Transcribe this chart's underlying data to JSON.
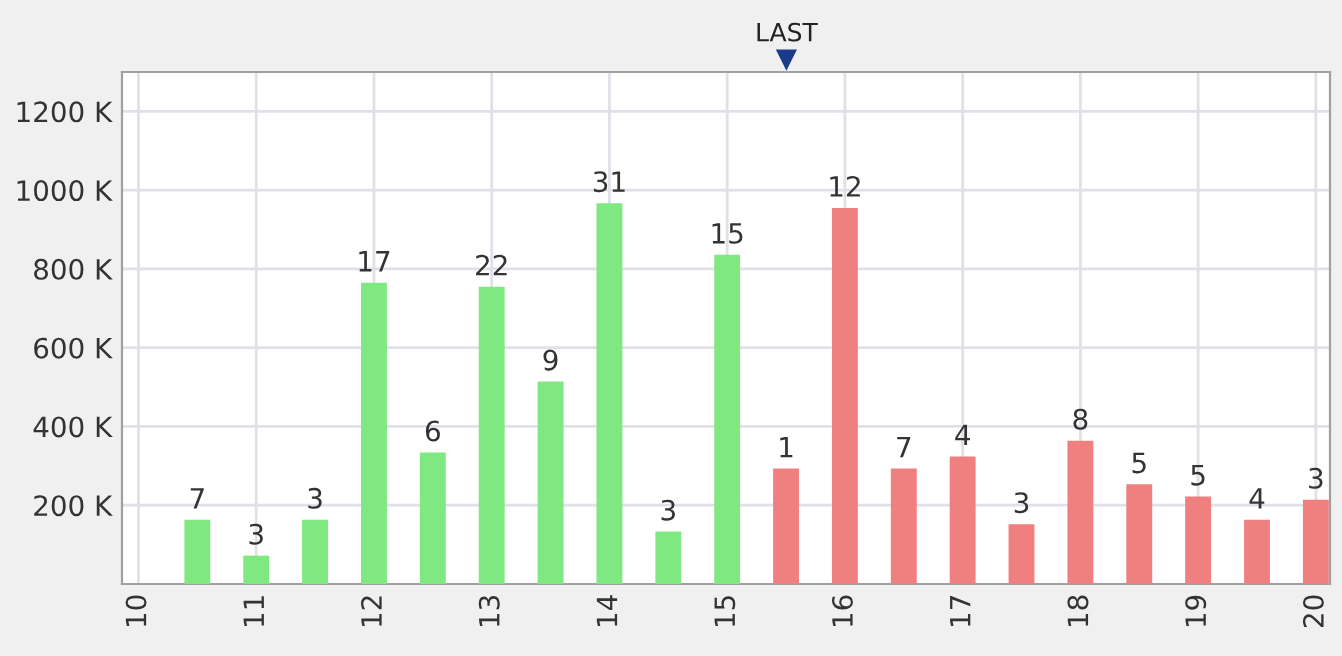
{
  "chart_data": {
    "type": "bar",
    "x": [
      10.5,
      11,
      11.5,
      12,
      12.5,
      13,
      13.5,
      14,
      14.5,
      15,
      15.5,
      16,
      16.5,
      17,
      17.5,
      18,
      18.5,
      19,
      19.5,
      20
    ],
    "values": [
      163,
      72,
      163,
      765,
      334,
      755,
      514,
      967,
      133,
      836,
      293,
      955,
      293,
      324,
      152,
      364,
      253,
      222,
      163,
      214
    ],
    "colors": [
      "#80e880",
      "#80e880",
      "#80e880",
      "#80e880",
      "#80e880",
      "#80e880",
      "#80e880",
      "#80e880",
      "#80e880",
      "#80e880",
      "#f08080",
      "#f08080",
      "#f08080",
      "#f08080",
      "#f08080",
      "#f08080",
      "#f08080",
      "#f08080",
      "#f08080",
      "#f08080"
    ],
    "xlim": [
      9.86,
      20.12
    ],
    "xticks": [
      10,
      11,
      12,
      13,
      14,
      15,
      16,
      17,
      18,
      19,
      20
    ],
    "ylim": [
      0,
      1300
    ],
    "yticks": [
      {
        "value": 200,
        "label": "200 K"
      },
      {
        "value": 400,
        "label": "400 K"
      },
      {
        "value": 600,
        "label": "600 K"
      },
      {
        "value": 800,
        "label": "800 K"
      },
      {
        "value": 1000,
        "label": "1000 K"
      },
      {
        "value": 1200,
        "label": "1200 K"
      }
    ],
    "annotations": [
      "LAST",
      {
        "text": "7",
        "x": 10.5,
        "y": 163
      },
      {
        "text": "3",
        "x": 11,
        "y": 72
      },
      {
        "text": "3",
        "x": 11.5,
        "y": 163
      },
      {
        "text": "17",
        "x": 12,
        "y": 765
      },
      {
        "text": "6",
        "x": 12.5,
        "y": 334
      },
      {
        "text": "22",
        "x": 13,
        "y": 755
      },
      {
        "text": "9",
        "x": 13.5,
        "y": 514
      },
      {
        "text": "31",
        "x": 14,
        "y": 967
      },
      {
        "text": "3",
        "x": 14.5,
        "y": 133
      },
      {
        "text": "15",
        "x": 15,
        "y": 836
      },
      {
        "text": "1",
        "x": 15.5,
        "y": 293
      },
      {
        "text": "12",
        "x": 16,
        "y": 955
      },
      {
        "text": "7",
        "x": 16.5,
        "y": 293
      },
      {
        "text": "4",
        "x": 17,
        "y": 324
      },
      {
        "text": "3",
        "x": 17.5,
        "y": 152
      },
      {
        "text": "8",
        "x": 18,
        "y": 364
      },
      {
        "text": "5",
        "x": 18.5,
        "y": 253
      },
      {
        "text": "5",
        "x": 19,
        "y": 222
      },
      {
        "text": "4",
        "x": 19.5,
        "y": 163
      },
      {
        "text": "3",
        "x": 20,
        "y": 214
      }
    ],
    "grid": true
  }
}
